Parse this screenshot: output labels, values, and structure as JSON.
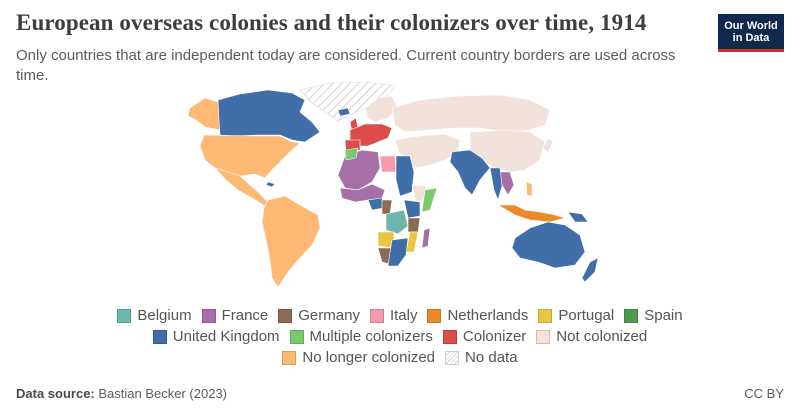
{
  "header": {
    "title": "European overseas colonies and their colonizers over time, 1914",
    "subtitle": "Only countries that are independent today are considered. Current country borders are used across time."
  },
  "logo": {
    "line1": "Our World",
    "line2": "in Data"
  },
  "colors": {
    "belgium": "#6eb5ac",
    "france": "#a76fa8",
    "germany": "#8c6b55",
    "italy": "#f49aa9",
    "netherlands": "#ec8a2a",
    "portugal": "#e9c63f",
    "spain": "#4f9b4b",
    "united_kingdom": "#3f6ea8",
    "multiple": "#79c96e",
    "colonizer": "#dd4b4b",
    "not_colonized": "#f1e2dc",
    "no_longer": "#fdb873",
    "no_data": "#e8e8e8"
  },
  "legend": {
    "rows": [
      [
        {
          "label": "Belgium",
          "color": "#6eb5ac",
          "key": "belgium"
        },
        {
          "label": "France",
          "color": "#a76fa8",
          "key": "france"
        },
        {
          "label": "Germany",
          "color": "#8c6b55",
          "key": "germany"
        },
        {
          "label": "Italy",
          "color": "#f49aa9",
          "key": "italy"
        },
        {
          "label": "Netherlands",
          "color": "#ec8a2a",
          "key": "netherlands"
        },
        {
          "label": "Portugal",
          "color": "#e9c63f",
          "key": "portugal"
        },
        {
          "label": "Spain",
          "color": "#4f9b4b",
          "key": "spain"
        }
      ],
      [
        {
          "label": "United Kingdom",
          "color": "#3f6ea8",
          "key": "united-kingdom"
        },
        {
          "label": "Multiple colonizers",
          "color": "#79c96e",
          "key": "multiple-colonizers"
        },
        {
          "label": "Colonizer",
          "color": "#dd4b4b",
          "key": "colonizer"
        },
        {
          "label": "Not colonized",
          "color": "#f1e2dc",
          "key": "not-colonized"
        }
      ],
      [
        {
          "label": "No longer colonized",
          "color": "#fdb873",
          "key": "no-longer-colonized"
        },
        {
          "label": "No data",
          "color": "hatch",
          "key": "no-data"
        }
      ]
    ]
  },
  "footer": {
    "source_label": "Data source:",
    "source_value": "Bastian Becker (2023)",
    "license": "CC BY"
  }
}
